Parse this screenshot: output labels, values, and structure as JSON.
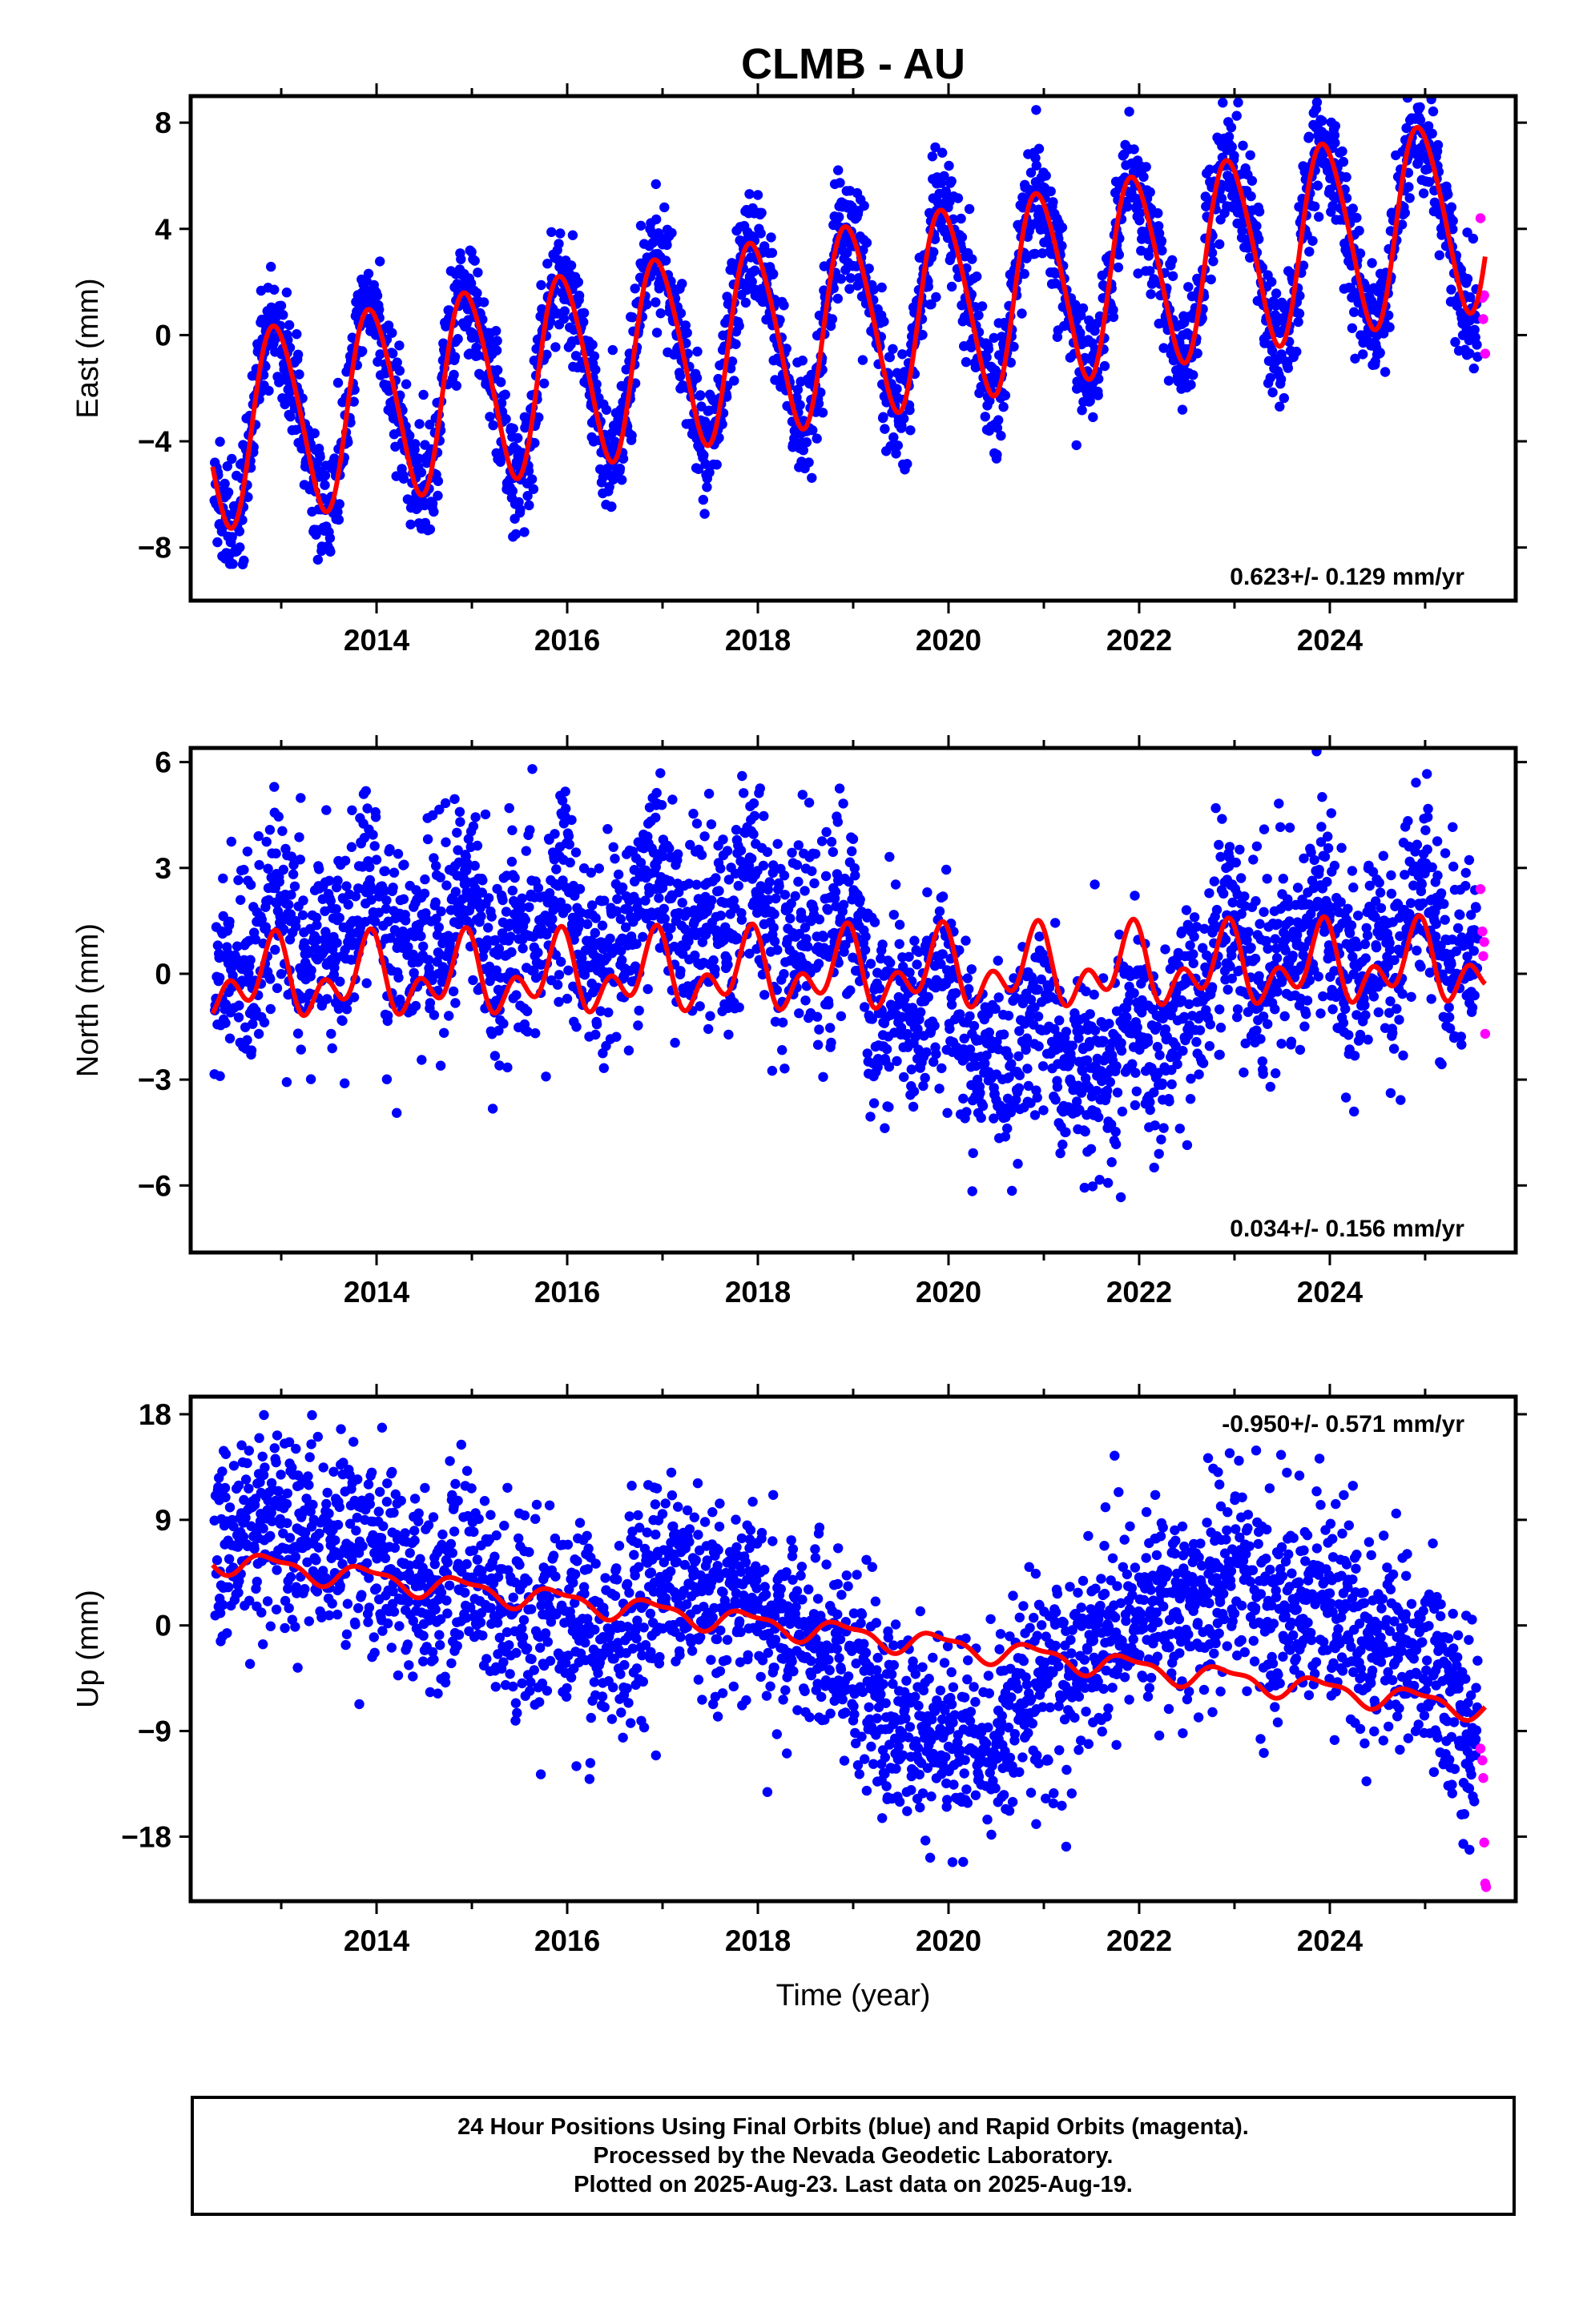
{
  "title": "CLMB - AU",
  "footer": {
    "lines": [
      "24 Hour Positions Using Final Orbits (blue) and Rapid Orbits (magenta).",
      "Processed by the Nevada Geodetic Laboratory.",
      "Plotted on 2025-Aug-23. Last data on 2025-Aug-19."
    ]
  },
  "colors": {
    "final": "#0000ff",
    "rapid": "#ff00ff",
    "model": "#ff0000",
    "frame": "#000000"
  },
  "chart_data": [
    {
      "type": "scatter",
      "name": "east",
      "ylabel": "East (mm)",
      "xlabel": "",
      "xlim": [
        2012.05,
        2025.95
      ],
      "ylim": [
        -10.0,
        9.0
      ],
      "yticks": [
        "8",
        "4",
        "0",
        "−4",
        "−8"
      ],
      "ytick_values": [
        8,
        4,
        0,
        -4,
        -8
      ],
      "xticks": [
        "2014",
        "2016",
        "2018",
        "2020",
        "2022",
        "2024"
      ],
      "xtick_values": [
        2014,
        2016,
        2018,
        2020,
        2022,
        2024
      ],
      "rate_label": "0.623+/- 0.129 mm/yr",
      "rate_position": "bottom-right",
      "model": {
        "rate": 0.623,
        "ref_epoch": 2012.3,
        "offset": -3.6,
        "annual_amp": 3.6,
        "annual_phase": 2012.95,
        "semiannual_amp": 0.4,
        "semiannual_phase": 2012.8,
        "breaks": []
      },
      "final_orbits": {
        "start": 2012.3,
        "end": 2025.55,
        "spread": 1.1,
        "noise_seed": 11,
        "offset_mm": 0,
        "extra": []
      },
      "rapid_orbits": {
        "x": [
          2025.58,
          2025.6,
          2025.61,
          2025.62,
          2025.63
        ],
        "y": [
          4.4,
          1.4,
          0.6,
          1.5,
          -0.7
        ]
      }
    },
    {
      "type": "scatter",
      "name": "north",
      "ylabel": "North (mm)",
      "xlabel": "",
      "xlim": [
        2012.05,
        2025.95
      ],
      "ylim": [
        -7.9,
        6.4
      ],
      "yticks": [
        "6",
        "3",
        "0",
        "−3",
        "−6"
      ],
      "ytick_values": [
        6,
        3,
        0,
        -3,
        -6
      ],
      "xticks": [
        "2014",
        "2016",
        "2018",
        "2020",
        "2022",
        "2024"
      ],
      "xtick_values": [
        2014,
        2016,
        2018,
        2020,
        2022,
        2024
      ],
      "rate_label": "0.034+/- 0.156 mm/yr",
      "rate_position": "bottom-right",
      "model": {
        "rate": 0.034,
        "ref_epoch": 2012.3,
        "offset": -0.2,
        "annual_amp": 0.75,
        "annual_phase": 2012.9,
        "semiannual_amp": 0.7,
        "semiannual_phase": 2012.95,
        "breaks": []
      },
      "final_orbits": {
        "start": 2012.3,
        "end": 2025.55,
        "spread": 1.4,
        "noise_seed": 23,
        "offset_mm": 0,
        "wander": [
          [
            2012.3,
            0.0
          ],
          [
            2013.0,
            1.2
          ],
          [
            2014.0,
            1.6
          ],
          [
            2015.0,
            1.2
          ],
          [
            2016.0,
            1.3
          ],
          [
            2017.0,
            1.8
          ],
          [
            2017.5,
            1.9
          ],
          [
            2018.2,
            1.7
          ],
          [
            2018.7,
            1.2
          ],
          [
            2019.3,
            -0.3
          ],
          [
            2020.0,
            -1.6
          ],
          [
            2021.0,
            -2.2
          ],
          [
            2021.8,
            -2.8
          ],
          [
            2022.3,
            -1.5
          ],
          [
            2023.0,
            0.3
          ],
          [
            2024.0,
            0.6
          ],
          [
            2025.55,
            0.8
          ]
        ],
        "extra": []
      },
      "rapid_orbits": {
        "x": [
          2025.58,
          2025.6,
          2025.61,
          2025.62,
          2025.63
        ],
        "y": [
          2.4,
          1.2,
          0.5,
          0.9,
          -1.7
        ]
      }
    },
    {
      "type": "scatter",
      "name": "up",
      "ylabel": "Up (mm)",
      "xlabel": "Time (year)",
      "xlim": [
        2012.05,
        2025.95
      ],
      "ylim": [
        -23.5,
        19.5
      ],
      "yticks": [
        "18",
        "9",
        "0",
        "−9",
        "−18"
      ],
      "ytick_values": [
        18,
        9,
        0,
        -9,
        -18
      ],
      "xticks": [
        "2014",
        "2016",
        "2018",
        "2020",
        "2022",
        "2024"
      ],
      "xtick_values": [
        2014,
        2016,
        2018,
        2020,
        2022,
        2024
      ],
      "rate_label": "-0.950+/- 0.571 mm/yr",
      "rate_position": "top-right",
      "model": {
        "rate": -0.95,
        "ref_epoch": 2012.3,
        "offset": 5.6,
        "annual_amp": 0.9,
        "annual_phase": 2012.9,
        "semiannual_amp": 0.35,
        "semiannual_phase": 2012.7,
        "breaks": []
      },
      "final_orbits": {
        "start": 2012.3,
        "end": 2025.55,
        "spread": 4.2,
        "noise_seed": 37,
        "offset_mm": 0,
        "wander": [
          [
            2012.3,
            2.0
          ],
          [
            2013.5,
            3.5
          ],
          [
            2014.0,
            1.0
          ],
          [
            2015.0,
            -0.5
          ],
          [
            2016.0,
            -2.0
          ],
          [
            2016.5,
            -3.0
          ],
          [
            2017.0,
            3.0
          ],
          [
            2018.0,
            2.0
          ],
          [
            2018.5,
            -1.0
          ],
          [
            2019.0,
            -4.0
          ],
          [
            2019.5,
            -7.0
          ],
          [
            2020.0,
            -8.5
          ],
          [
            2020.5,
            -6.5
          ],
          [
            2021.0,
            -2.0
          ],
          [
            2022.0,
            4.0
          ],
          [
            2023.0,
            8.0
          ],
          [
            2024.0,
            6.0
          ],
          [
            2025.0,
            3.0
          ],
          [
            2025.55,
            -3.0
          ]
        ],
        "extra": []
      },
      "rapid_orbits": {
        "x": [
          2025.58,
          2025.6,
          2025.61,
          2025.62,
          2025.63,
          2025.64
        ],
        "y": [
          -10.5,
          -11.5,
          -13.0,
          -18.5,
          -22.0,
          -22.3
        ]
      }
    }
  ]
}
